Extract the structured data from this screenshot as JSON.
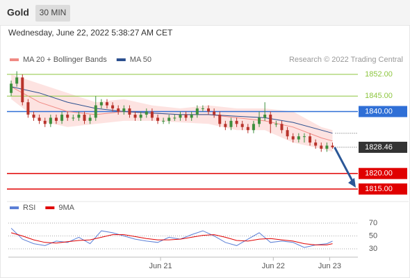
{
  "header": {
    "title": "Gold",
    "interval": "30 MIN"
  },
  "chart_data": [
    {
      "type": "candlestick",
      "subtitle": "Wednesday, June 22, 2022 5:38:27 AM CET",
      "source": "Research © 2022 Trading Central",
      "xlim": [
        -0.5,
        61.5
      ],
      "ylim": [
        1812.5,
        1855
      ],
      "xticks": [
        {
          "value": 26.5,
          "label": "Jun 21"
        },
        {
          "value": 46.5,
          "label": "Jun 22"
        },
        {
          "value": 56.5,
          "label": "Jun 23"
        }
      ],
      "up_color": "#3d8f3d",
      "down_color": "#b8332b",
      "open": [
        1846,
        1849,
        1851,
        1843,
        1839,
        1838,
        1837,
        1836,
        1838,
        1837,
        1839,
        1838,
        1838,
        1839,
        1837,
        1838,
        1842,
        1843,
        1842,
        1841,
        1840,
        1841,
        1839,
        1838,
        1839,
        1840,
        1838,
        1837,
        1837,
        1838,
        1838,
        1839,
        1838,
        1839,
        1841,
        1841,
        1840,
        1839,
        1836,
        1835,
        1837,
        1836,
        1835,
        1834,
        1836,
        1838,
        1839,
        1836,
        1836,
        1834,
        1832,
        1831,
        1832,
        1832,
        1830,
        1829,
        1828,
        1829
      ],
      "high": [
        1850,
        1853,
        1852,
        1844,
        1840,
        1839,
        1838,
        1839,
        1839,
        1840,
        1840,
        1839,
        1840,
        1840,
        1839,
        1845,
        1844,
        1844,
        1843,
        1842,
        1842,
        1842,
        1840,
        1840,
        1841,
        1841,
        1839,
        1838,
        1839,
        1839,
        1840,
        1840,
        1840,
        1842,
        1842,
        1842,
        1841,
        1840,
        1837,
        1838,
        1838,
        1837,
        1836,
        1837,
        1840,
        1843,
        1840,
        1837,
        1837,
        1835,
        1833,
        1833,
        1833,
        1833,
        1831,
        1830,
        1830,
        1830
      ],
      "low": [
        1845,
        1848,
        1842,
        1838,
        1837,
        1836,
        1835,
        1835,
        1836,
        1836,
        1837,
        1837,
        1837,
        1836,
        1836,
        1837,
        1841,
        1841,
        1840,
        1839,
        1839,
        1838,
        1837,
        1837,
        1838,
        1837,
        1836,
        1836,
        1836,
        1837,
        1837,
        1837,
        1837,
        1838,
        1840,
        1839,
        1838,
        1835,
        1834,
        1834,
        1835,
        1834,
        1833,
        1833,
        1835,
        1837,
        1833,
        1835,
        1833,
        1831,
        1830,
        1830,
        1830,
        1829,
        1828,
        1827,
        1827,
        1828
      ],
      "close": [
        1849,
        1851,
        1843,
        1839,
        1838,
        1837,
        1836,
        1838,
        1837,
        1839,
        1838,
        1838,
        1839,
        1837,
        1838,
        1842,
        1843,
        1842,
        1841,
        1840,
        1841,
        1839,
        1838,
        1839,
        1840,
        1838,
        1837,
        1837,
        1838,
        1838,
        1839,
        1838,
        1839,
        1841,
        1841,
        1840,
        1839,
        1836,
        1835,
        1837,
        1836,
        1835,
        1834,
        1836,
        1838,
        1839,
        1836,
        1836,
        1834,
        1832,
        1831,
        1832,
        1832,
        1830,
        1829,
        1828,
        1829,
        1828.46
      ],
      "series": [
        {
          "name": "MA 20 + Bollinger Bands",
          "color": "#f08a84",
          "band_color": "#fde3e1",
          "x": [
            0,
            5,
            10,
            15,
            20,
            25,
            30,
            35,
            40,
            45,
            50,
            55,
            57
          ],
          "values": [
            1848,
            1843,
            1840,
            1839,
            1840,
            1839.5,
            1839,
            1839,
            1838,
            1837,
            1835,
            1831.5,
            1830.5
          ],
          "upper": [
            1852,
            1849,
            1846,
            1843,
            1844,
            1842,
            1841,
            1842,
            1841,
            1841,
            1840,
            1835,
            1834
          ],
          "lower": [
            1844,
            1837,
            1835,
            1836,
            1837,
            1837,
            1836.5,
            1836,
            1834,
            1834,
            1830,
            1828,
            1827
          ]
        },
        {
          "name": "MA 50",
          "color": "#2b4f8f",
          "x": [
            0,
            5,
            10,
            15,
            20,
            25,
            30,
            35,
            40,
            45,
            50,
            55,
            57
          ],
          "values": [
            1848,
            1846,
            1843,
            1841,
            1840,
            1839.5,
            1839,
            1839,
            1838.5,
            1838,
            1836.5,
            1834,
            1833
          ]
        }
      ],
      "levels": [
        {
          "value": 1852,
          "label": "1852.00",
          "color": "#8dc63f",
          "boxed": false
        },
        {
          "value": 1845,
          "label": "1845.00",
          "color": "#8dc63f",
          "boxed": false
        },
        {
          "value": 1840,
          "label": "1840.00",
          "color": "#2f6fd6",
          "boxed": true
        },
        {
          "value": 1828.46,
          "label": "1828.46",
          "color": "#333333",
          "boxed": true,
          "dotted": true
        },
        {
          "value": 1820,
          "label": "1820.00",
          "color": "#e00000",
          "boxed": true
        },
        {
          "value": 1815,
          "label": "1815.00",
          "color": "#e00000",
          "boxed": true
        }
      ]
    },
    {
      "type": "line",
      "xlim": [
        -0.5,
        61.5
      ],
      "ylim": [
        20,
        80
      ],
      "yticks": [
        70,
        50,
        30
      ],
      "series": [
        {
          "name": "RSI",
          "color": "#5b7fd6",
          "x": [
            0,
            2,
            4,
            6,
            8,
            10,
            12,
            14,
            16,
            18,
            20,
            22,
            24,
            26,
            28,
            30,
            32,
            34,
            36,
            38,
            40,
            42,
            44,
            46,
            48,
            50,
            52,
            54,
            56,
            57
          ],
          "values": [
            62,
            45,
            38,
            35,
            42,
            40,
            48,
            38,
            58,
            55,
            50,
            45,
            42,
            40,
            48,
            45,
            52,
            58,
            50,
            40,
            35,
            45,
            55,
            40,
            42,
            40,
            32,
            36,
            38,
            42
          ]
        },
        {
          "name": "9MA",
          "color": "#e00000",
          "x": [
            0,
            2,
            4,
            6,
            8,
            10,
            12,
            14,
            16,
            18,
            20,
            22,
            24,
            26,
            28,
            30,
            32,
            34,
            36,
            38,
            40,
            42,
            44,
            46,
            48,
            50,
            52,
            54,
            56,
            57
          ],
          "values": [
            55,
            50,
            44,
            40,
            39,
            41,
            43,
            44,
            48,
            52,
            52,
            49,
            46,
            44,
            44,
            45,
            48,
            51,
            52,
            48,
            43,
            42,
            45,
            46,
            44,
            42,
            38,
            36,
            36,
            38
          ]
        }
      ]
    }
  ]
}
